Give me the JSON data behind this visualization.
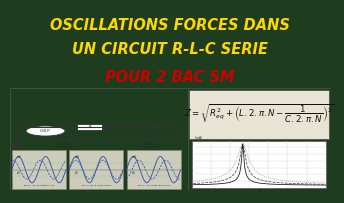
{
  "bg_color": "#1e3d1e",
  "title_line1": "OSCILLATIONS FORCES DANS",
  "title_line2": "UN CIRCUIT R-L-C SERIE",
  "title_line3": "POUR 2 BAC SM",
  "title_color1": "#FFD700",
  "title_color2": "#FFD700",
  "title_color3": "#CC0000",
  "title_fontsize": 10.5,
  "panel_bg": "#d8d4c4",
  "circuit_bg": "#e8e4d4",
  "wave_bg": "#c8c8b8",
  "formula_color": "#111111",
  "circuit_color": "#333333"
}
